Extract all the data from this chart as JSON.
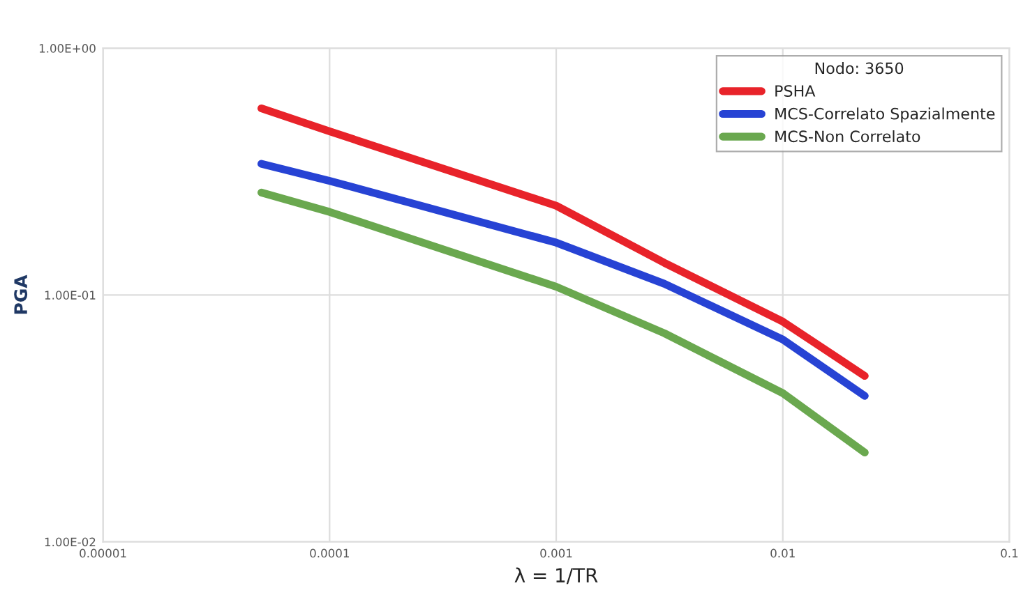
{
  "chart_data": {
    "type": "line",
    "xlabel": "λ = 1/TR",
    "ylabel": "PGA",
    "legend_title": "Nodo: 3650",
    "log": "xy",
    "grid": true,
    "legend": "top right",
    "xlim": [
      1e-05,
      0.1
    ],
    "xticks": [
      {
        "value": 1e-05,
        "label": "0.00001"
      },
      0.0001,
      0.001,
      0.01,
      0.1
    ],
    "ylim": [
      0.01,
      1
    ],
    "yticks": [
      {
        "value": 0.01,
        "label": "1.00E-02"
      },
      {
        "value": 0.1,
        "label": "1.00E-01"
      },
      {
        "value": 1,
        "label": "1.00E+00"
      }
    ],
    "x": [
      5e-05,
      0.0001,
      0.001,
      0.003,
      0.01,
      0.023
    ],
    "series": [
      {
        "name": "PSHA",
        "color": "#e8232a",
        "values": [
          0.57,
          0.46,
          0.23,
          0.135,
          0.078,
          0.047
        ]
      },
      {
        "name": "MCS-Correlato Spazialmente",
        "color": "#2743d4",
        "values": [
          0.34,
          0.29,
          0.163,
          0.111,
          0.066,
          0.039
        ]
      },
      {
        "name": "MCS-Non Correlato",
        "color": "#6aa84f",
        "values": [
          0.26,
          0.217,
          0.108,
          0.07,
          0.04,
          0.023
        ]
      }
    ]
  }
}
